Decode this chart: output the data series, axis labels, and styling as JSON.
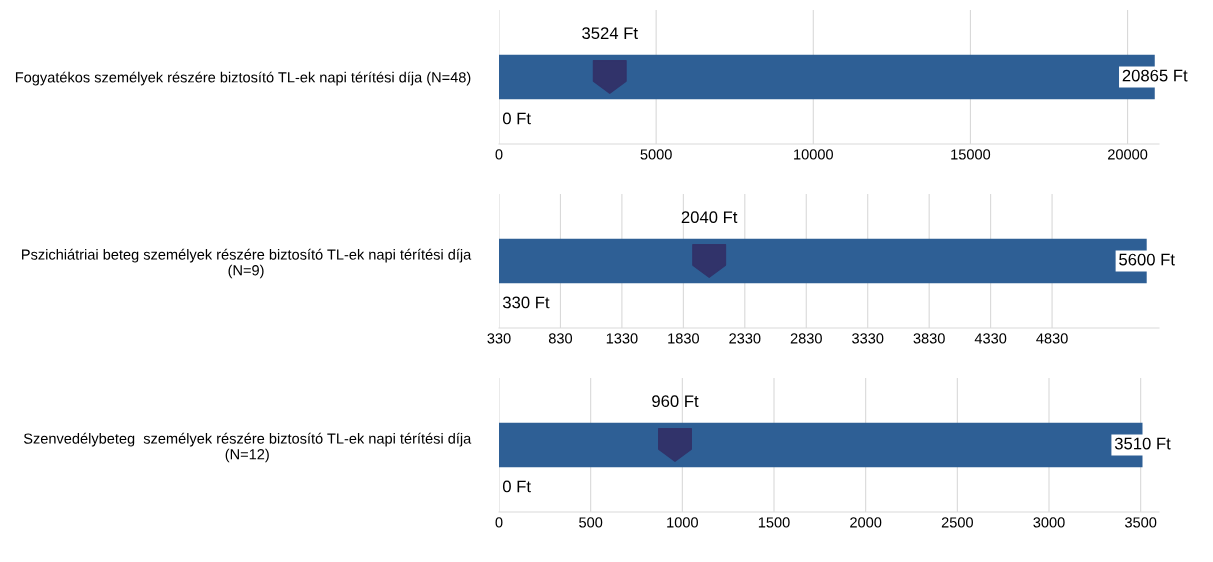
{
  "chart_data": [
    {
      "type": "bar",
      "orientation": "horizontal",
      "categories": [
        "Fogyatékos személyek részére biztosító TL-ek napi térítési díja (N=48)"
      ],
      "xlim": [
        0,
        21000
      ],
      "xticks": [
        0,
        5000,
        10000,
        15000,
        20000
      ],
      "grid": "x",
      "series": [
        {
          "type": "bar",
          "color": "#2e5f95",
          "base": [
            0
          ],
          "values": [
            20865
          ]
        },
        {
          "type": "scatter",
          "color": "#31336a",
          "values": [
            3524
          ],
          "value_labels": [
            "3524 Ft"
          ]
        }
      ],
      "annotations": [
        "0 Ft",
        {
          "text": "20865 Ft",
          "x": 20865
        }
      ]
    },
    {
      "type": "bar",
      "orientation": "horizontal",
      "categories": [
        "Pszichiátriai beteg személyek részére biztosító TL-ek napi térítési díja (N=9)"
      ],
      "xlim": [
        330,
        5700
      ],
      "xticks": [
        330,
        830,
        1330,
        1830,
        2330,
        2830,
        3330,
        3830,
        4330,
        4830
      ],
      "grid": "x",
      "series": [
        {
          "type": "bar",
          "color": "#2e5f95",
          "base": [
            330
          ],
          "values": [
            5270
          ]
        },
        {
          "type": "scatter",
          "color": "#31336a",
          "values": [
            2040
          ],
          "value_labels": [
            "2040 Ft"
          ]
        }
      ],
      "annotations": [
        "330 Ft",
        {
          "text": "5600 Ft",
          "x": 5600
        }
      ]
    },
    {
      "type": "bar",
      "orientation": "horizontal",
      "categories": [
        "Szenvedélybeteg  személyek részére biztosító TL-ek napi térítési díja (N=12)"
      ],
      "xlim": [
        0,
        3600
      ],
      "xticks": [
        0,
        500,
        1000,
        1500,
        2000,
        2500,
        3000,
        3500
      ],
      "grid": "x",
      "series": [
        {
          "type": "bar",
          "color": "#2e5f95",
          "base": [
            0
          ],
          "values": [
            3510
          ]
        },
        {
          "type": "scatter",
          "color": "#31336a",
          "values": [
            960
          ],
          "value_labels": [
            "960 Ft"
          ]
        }
      ],
      "annotations": [
        "0 Ft",
        {
          "text": "3510 Ft",
          "x": 3510
        }
      ]
    }
  ]
}
